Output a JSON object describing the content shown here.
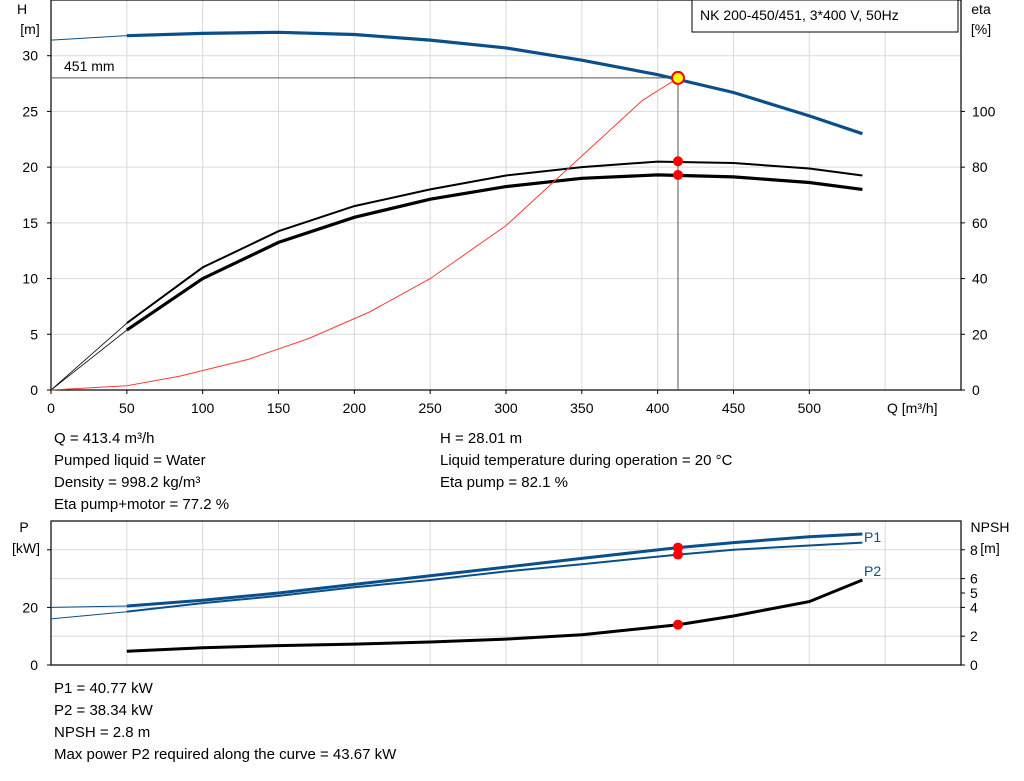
{
  "chart_data": [
    {
      "type": "line",
      "title": "NK 200-450/451, 3*400 V, 50Hz",
      "xlabel": "Q [m³/h]",
      "ylabel_left": [
        "H",
        "[m]"
      ],
      "ylabel_right": [
        "eta",
        "[%]"
      ],
      "xlim": [
        0,
        600
      ],
      "ylim_left": [
        0,
        35
      ],
      "ylim_right": [
        0,
        140
      ],
      "x_ticks": [
        0,
        50,
        100,
        150,
        200,
        250,
        300,
        350,
        400,
        450,
        500
      ],
      "y_ticks_left": [
        0,
        5,
        10,
        15,
        20,
        25,
        30
      ],
      "y_ticks_right": [
        0,
        20,
        40,
        60,
        80,
        100
      ],
      "grid": true,
      "curve_label": "451 mm",
      "series": [
        {
          "axis": "left",
          "color": "#0b4f8a",
          "x": [
            50,
            100,
            150,
            200,
            250,
            300,
            350,
            400,
            450,
            500,
            535
          ],
          "y": [
            31.8,
            32.0,
            32.1,
            31.9,
            31.4,
            30.7,
            29.6,
            28.3,
            26.7,
            24.6,
            23.0
          ]
        },
        {
          "axis": "right",
          "color": "#000000",
          "x": [
            50,
            100,
            150,
            200,
            250,
            300,
            350,
            400,
            450,
            500,
            535
          ],
          "y": [
            24,
            44,
            57,
            66,
            72,
            77,
            80,
            82,
            81.5,
            79.5,
            77
          ]
        },
        {
          "axis": "right",
          "color": "#000000",
          "x": [
            50,
            100,
            150,
            200,
            250,
            300,
            350,
            400,
            450,
            500,
            535
          ],
          "y": [
            21.5,
            40,
            53,
            62,
            68.5,
            73,
            76,
            77.2,
            76.5,
            74.5,
            72
          ]
        },
        {
          "axis": "right",
          "color": "#ff3b3b",
          "x": [
            0,
            50,
            85,
            130,
            170,
            210,
            250,
            300,
            350,
            390,
            413.4
          ],
          "y": [
            0,
            1.5,
            5,
            11,
            18.5,
            28,
            40,
            59,
            84,
            104,
            112
          ]
        }
      ],
      "operating_point": {
        "x": 413.4,
        "y": 28.01
      },
      "eta_points": [
        82.1,
        77.2
      ]
    },
    {
      "type": "line",
      "ylabel_left": [
        "P",
        "[kW]"
      ],
      "ylabel_right": [
        "NPSH",
        "[m]"
      ],
      "xlim": [
        0,
        600
      ],
      "ylim_left": [
        0,
        50
      ],
      "ylim_right": [
        0,
        10
      ],
      "y_ticks_left": [
        0,
        20
      ],
      "y_ticks_right": [
        0,
        2,
        4,
        5,
        6,
        8
      ],
      "grid": true,
      "series": [
        {
          "name": "P1",
          "axis": "left",
          "color": "#0b4f8a",
          "x": [
            50,
            100,
            150,
            200,
            250,
            300,
            350,
            413.4,
            450,
            500,
            535
          ],
          "y": [
            20.5,
            22.5,
            25,
            28,
            31,
            34,
            37,
            40.77,
            42.5,
            44.5,
            45.5
          ]
        },
        {
          "name": "P2",
          "axis": "left",
          "color": "#0b4f8a",
          "x": [
            50,
            100,
            150,
            200,
            250,
            300,
            350,
            413.4,
            450,
            500,
            535
          ],
          "y": [
            18.5,
            21.5,
            24,
            27,
            29.5,
            32.5,
            35,
            38.34,
            40,
            41.5,
            42.5
          ]
        },
        {
          "axis": "right",
          "color": "#000000",
          "x": [
            50,
            100,
            150,
            200,
            250,
            300,
            350,
            413.4,
            450,
            500,
            535
          ],
          "y": [
            0.95,
            1.2,
            1.35,
            1.45,
            1.6,
            1.8,
            2.1,
            2.8,
            3.4,
            4.4,
            5.9
          ]
        }
      ],
      "operating_points": [
        40.77,
        38.34
      ],
      "npsh_point": 2.8,
      "line_start_left": [
        16,
        20
      ]
    }
  ],
  "info_top_left": [
    "Q = 413.4 m³/h",
    "Pumped liquid = Water",
    "Density = 998.2 kg/m³",
    "Eta pump+motor = 77.2 %"
  ],
  "info_top_right": [
    "H = 28.01 m",
    "Liquid temperature during operation = 20 °C",
    "Eta pump = 82.1 %"
  ],
  "info_bottom": [
    "P1 = 40.77 kW",
    "P2 = 38.34 kW",
    "NPSH = 2.8 m",
    "Max power P2 required along the curve = 43.67 kW"
  ]
}
